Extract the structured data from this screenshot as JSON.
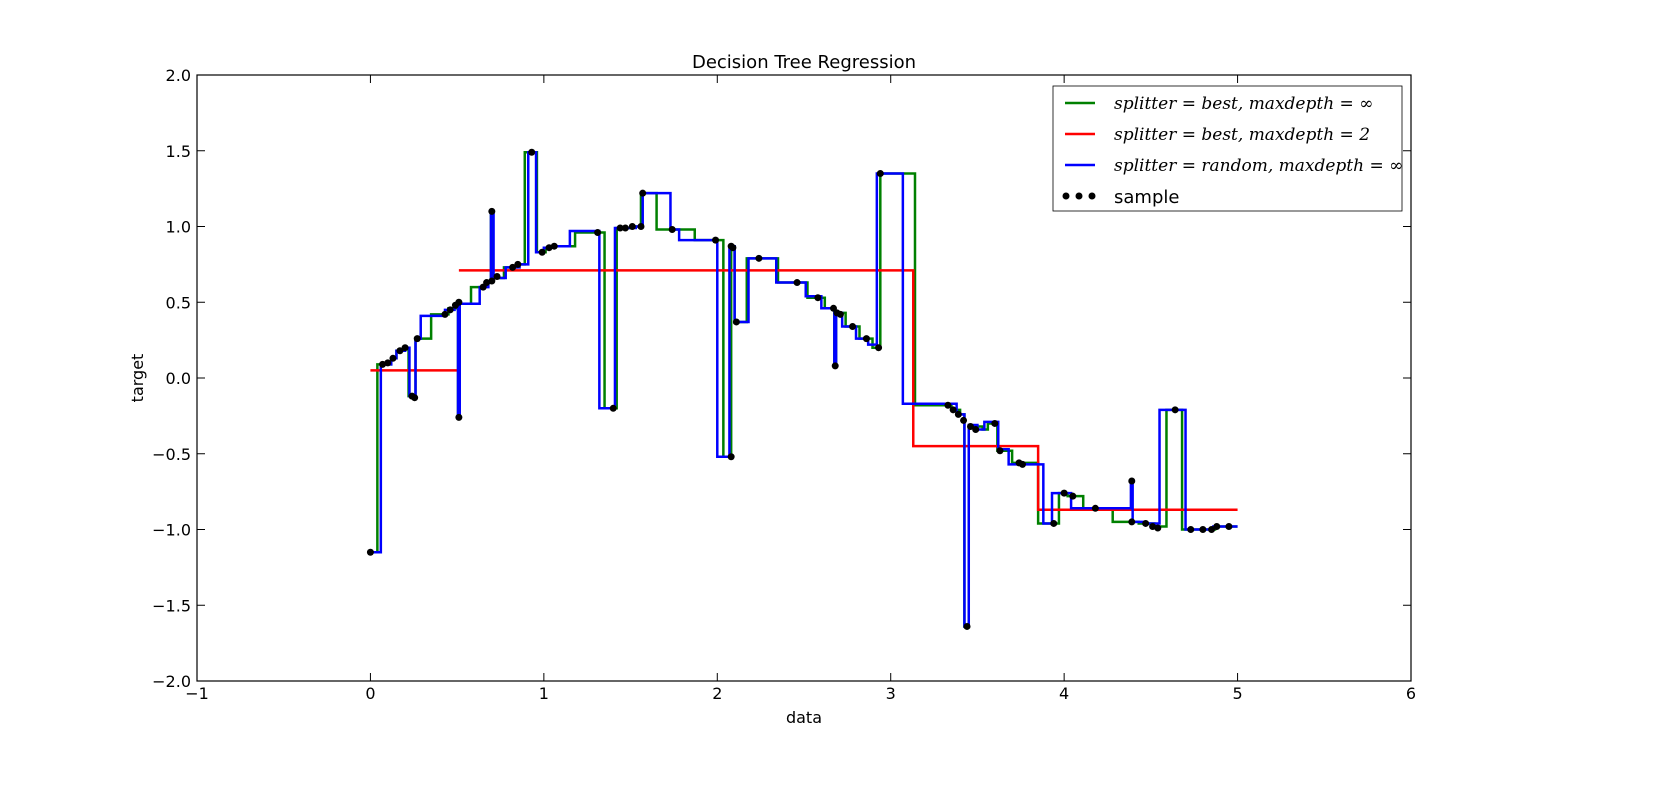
{
  "chart_data": {
    "type": "step-scatter",
    "title": "Decision Tree Regression",
    "x_label": "data",
    "y_label": "target",
    "xlim": [
      -1,
      6
    ],
    "ylim": [
      -2.0,
      2.0
    ],
    "xticks": [
      {
        "value": -1,
        "label": "−1"
      },
      0,
      1,
      2,
      3,
      4,
      5,
      6
    ],
    "yticks": [
      {
        "value": -2.0,
        "label": "−2.0"
      },
      {
        "value": -1.5,
        "label": "−1.5"
      },
      {
        "value": -1.0,
        "label": "−1.0"
      },
      {
        "value": -0.5,
        "label": "−0.5"
      },
      {
        "value": 0.0,
        "label": "0.0"
      },
      0.5,
      {
        "value": 1.0,
        "label": "1.0"
      },
      1.5,
      {
        "value": 2.0,
        "label": "2.0"
      }
    ],
    "legend": "upper right",
    "series": [
      {
        "name": "splitter = best, maxdepth = ∞",
        "color": "#008000",
        "x": [
          0,
          0.04,
          0.12,
          0.15,
          0.19,
          0.22,
          0.26,
          0.35,
          0.45,
          0.5,
          0.505,
          0.515,
          0.58,
          0.66,
          0.695,
          0.705,
          0.77,
          0.84,
          0.89,
          0.96,
          1.01,
          1.05,
          1.18,
          1.35,
          1.42,
          1.5,
          1.56,
          1.65,
          1.87,
          2.035,
          2.08,
          2.1,
          2.17,
          2.35,
          2.52,
          2.62,
          2.675,
          2.685,
          2.74,
          2.82,
          2.895,
          2.94,
          3.14,
          3.35,
          3.4,
          3.425,
          3.45,
          3.53,
          3.56,
          3.615,
          3.7,
          3.85,
          3.97,
          4.02,
          4.11,
          4.28,
          4.43,
          4.52,
          4.59,
          4.68,
          4.87,
          5.0
        ],
        "values": [
          -1.15,
          0.09,
          0.13,
          0.18,
          0.2,
          -0.12,
          0.26,
          0.42,
          0.46,
          0.5,
          -0.26,
          0.49,
          0.6,
          0.63,
          1.1,
          0.66,
          0.73,
          0.75,
          1.49,
          0.83,
          0.86,
          0.87,
          0.96,
          -0.2,
          0.99,
          1.0,
          1.22,
          0.98,
          0.91,
          -0.52,
          0.87,
          0.37,
          0.79,
          0.63,
          0.53,
          0.46,
          0.08,
          0.43,
          0.34,
          0.26,
          0.2,
          1.35,
          -0.18,
          -0.21,
          -0.24,
          -1.64,
          -0.32,
          -0.34,
          -0.3,
          -0.48,
          -0.56,
          -0.96,
          -0.76,
          -0.78,
          -0.86,
          -0.95,
          -0.96,
          -0.98,
          -0.21,
          -1.0,
          -0.98,
          -0.98
        ]
      },
      {
        "name": "splitter = best, maxdepth = 2",
        "color": "#ff0000",
        "x": [
          0,
          0.5,
          0.51,
          3.13,
          3.85,
          5.0
        ],
        "values": [
          0.05,
          null,
          0.71,
          -0.45,
          -0.87,
          -0.87
        ]
      },
      {
        "name": "splitter = random, maxdepth = ∞",
        "color": "#0000ff",
        "x": [
          0,
          0.06,
          0.12,
          0.15,
          0.2,
          0.225,
          0.26,
          0.29,
          0.43,
          0.485,
          0.505,
          0.515,
          0.63,
          0.68,
          0.695,
          0.71,
          0.78,
          0.86,
          0.91,
          0.955,
          1.0,
          1.03,
          1.15,
          1.32,
          1.41,
          1.53,
          1.57,
          1.73,
          1.78,
          2.0,
          2.07,
          2.1,
          2.18,
          2.34,
          2.51,
          2.6,
          2.675,
          2.685,
          2.72,
          2.8,
          2.87,
          2.92,
          3.07,
          3.38,
          3.425,
          3.45,
          3.5,
          3.54,
          3.62,
          3.68,
          3.88,
          3.93,
          4.04,
          4.385,
          4.395,
          4.47,
          4.55,
          4.7,
          4.86,
          5.0
        ],
        "values": [
          -1.15,
          0.09,
          0.13,
          0.18,
          0.2,
          -0.12,
          0.26,
          0.41,
          0.45,
          0.48,
          -0.26,
          0.49,
          0.6,
          0.63,
          1.1,
          0.66,
          0.73,
          0.75,
          1.49,
          0.83,
          0.86,
          0.87,
          0.97,
          -0.2,
          0.99,
          1.0,
          1.22,
          0.98,
          0.91,
          -0.52,
          0.87,
          0.37,
          0.79,
          0.63,
          0.54,
          0.46,
          0.08,
          0.43,
          0.34,
          0.26,
          0.22,
          1.35,
          -0.17,
          -0.24,
          -1.64,
          -0.31,
          -0.34,
          -0.29,
          -0.47,
          -0.57,
          -0.96,
          -0.76,
          -0.86,
          -0.68,
          -0.95,
          -0.96,
          -0.21,
          -1.0,
          -0.98,
          -0.98
        ]
      },
      {
        "name": "sample",
        "color": "#000000",
        "x": [
          0.0,
          0.07,
          0.1,
          0.13,
          0.17,
          0.2,
          0.24,
          0.255,
          0.27,
          0.43,
          0.46,
          0.49,
          0.51,
          0.51,
          0.65,
          0.67,
          0.7,
          0.7,
          0.73,
          0.82,
          0.85,
          0.93,
          0.99,
          1.03,
          1.06,
          1.31,
          1.4,
          1.44,
          1.47,
          1.51,
          1.56,
          1.57,
          1.74,
          1.99,
          2.08,
          2.08,
          2.09,
          2.11,
          2.24,
          2.46,
          2.58,
          2.67,
          2.69,
          2.68,
          2.71,
          2.78,
          2.86,
          2.93,
          2.94,
          3.33,
          3.36,
          3.39,
          3.42,
          3.44,
          3.46,
          3.49,
          3.6,
          3.63,
          3.74,
          3.76,
          3.94,
          4.0,
          4.05,
          4.18,
          4.39,
          4.39,
          4.47,
          4.51,
          4.54,
          4.64,
          4.73,
          4.8,
          4.85,
          4.88,
          4.95
        ],
        "values": [
          -1.15,
          0.09,
          0.1,
          0.13,
          0.18,
          0.2,
          -0.12,
          -0.13,
          0.26,
          0.42,
          0.45,
          0.48,
          0.5,
          -0.26,
          0.6,
          0.63,
          0.64,
          1.1,
          0.67,
          0.73,
          0.75,
          1.49,
          0.83,
          0.86,
          0.87,
          0.96,
          -0.2,
          0.99,
          0.99,
          1.0,
          1.0,
          1.22,
          0.98,
          0.91,
          -0.52,
          0.87,
          0.86,
          0.37,
          0.79,
          0.63,
          0.53,
          0.46,
          0.43,
          0.08,
          0.42,
          0.34,
          0.26,
          0.2,
          1.35,
          -0.18,
          -0.21,
          -0.24,
          -0.28,
          -1.64,
          -0.32,
          -0.34,
          -0.3,
          -0.48,
          -0.56,
          -0.57,
          -0.96,
          -0.76,
          -0.78,
          -0.86,
          -0.68,
          -0.95,
          -0.96,
          -0.98,
          -0.99,
          -0.21,
          -1.0,
          -1.0,
          -1.0,
          -0.98,
          -0.98
        ]
      }
    ]
  }
}
